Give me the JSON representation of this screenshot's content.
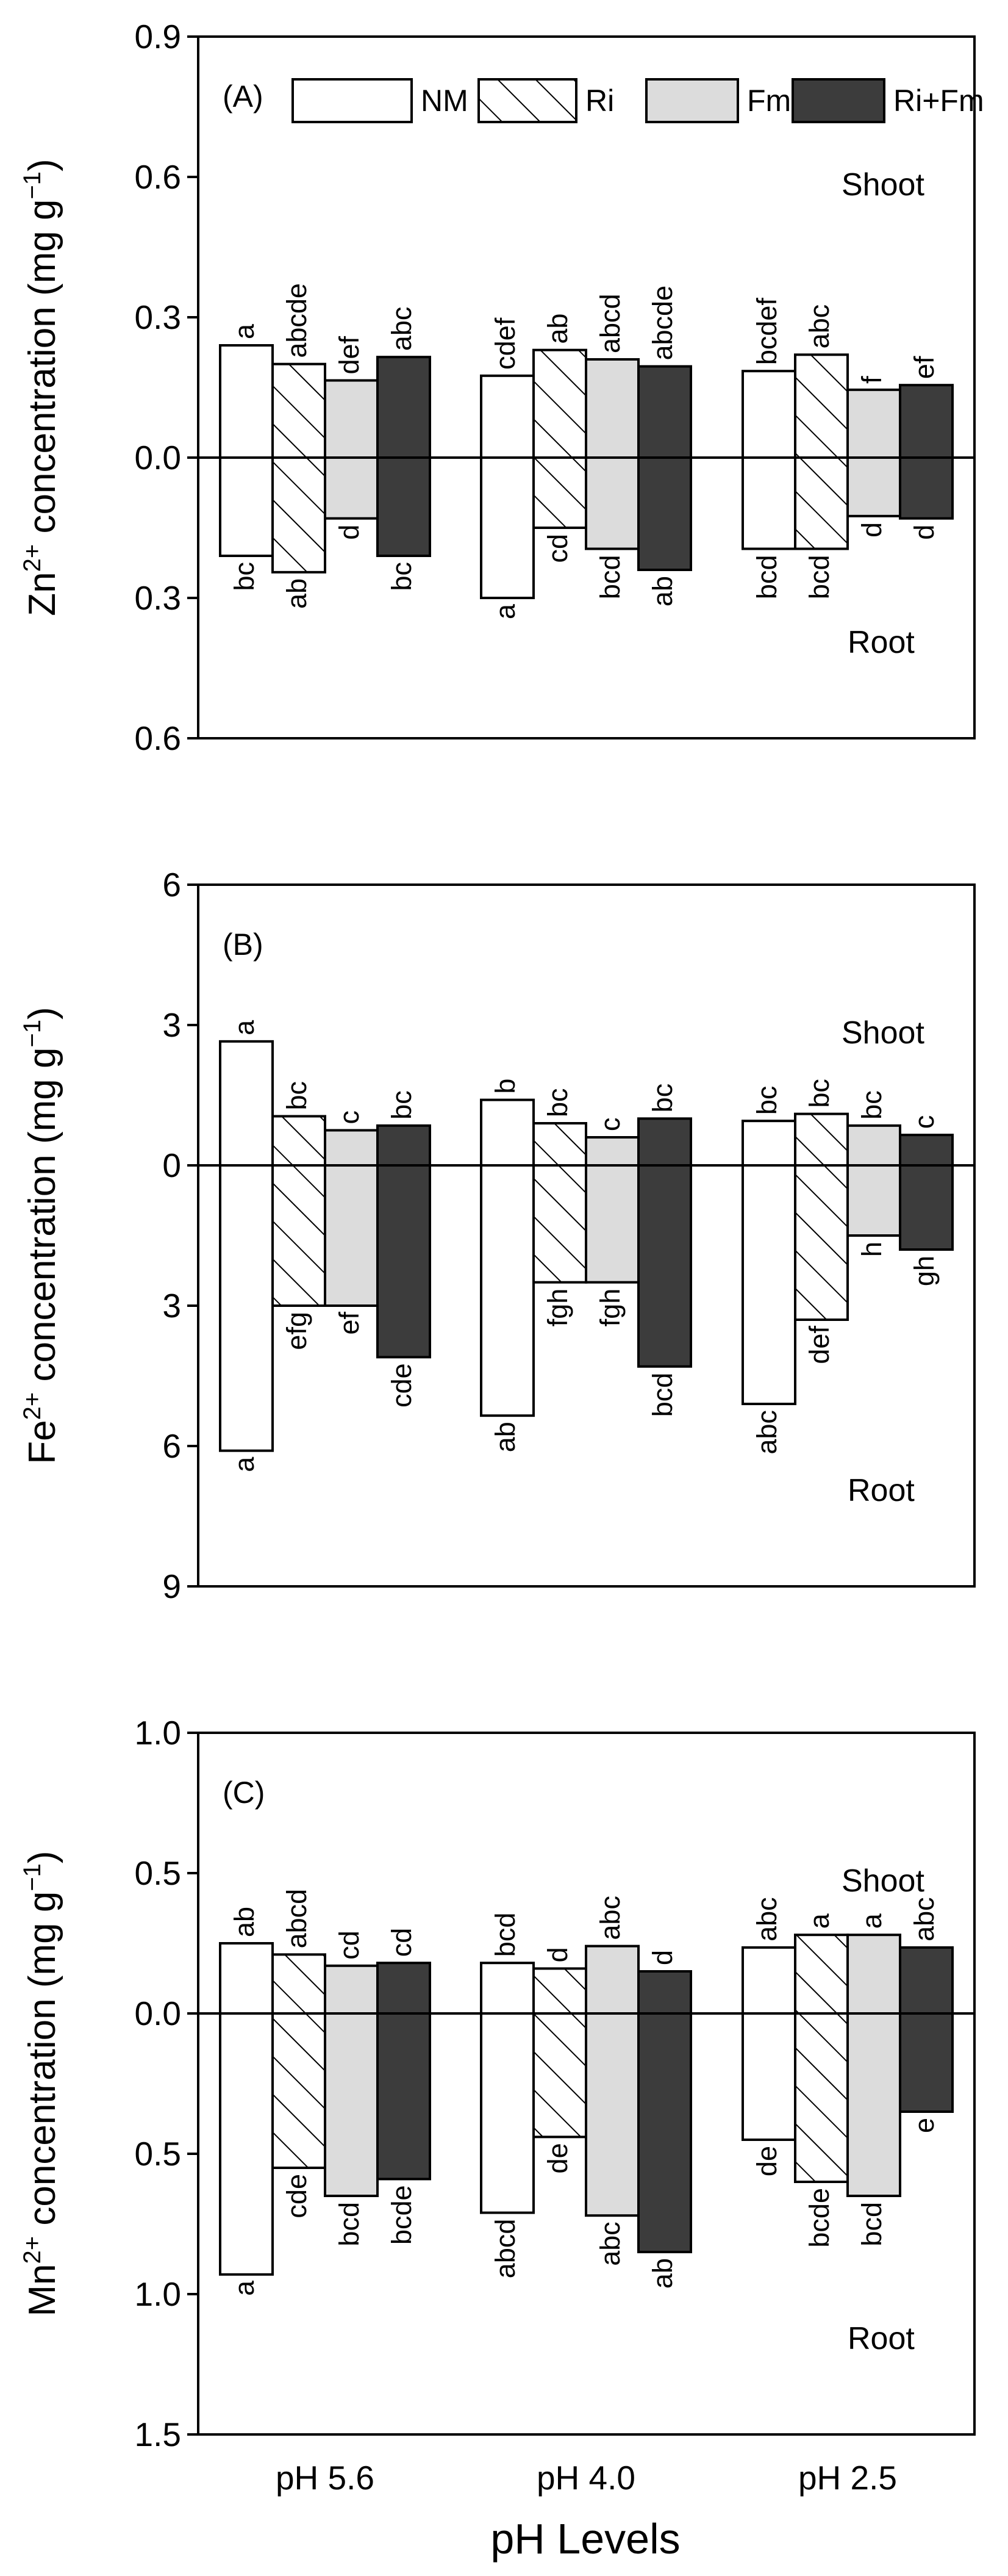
{
  "chart_data": {
    "type": "bar",
    "xlabel": "pH Levels",
    "categories": [
      "pH 5.6",
      "pH 4.0",
      "pH 2.5"
    ],
    "series_names": [
      "NM",
      "Ri",
      "Fm",
      "Ri+Fm"
    ],
    "series_styles": [
      {
        "name": "NM",
        "fill": "#ffffff",
        "hatch": false
      },
      {
        "name": "Ri",
        "fill": "#ffffff",
        "hatch": true
      },
      {
        "name": "Fm",
        "fill": "#dcdcdc",
        "hatch": false
      },
      {
        "name": "Ri+Fm",
        "fill": "#3c3c3c",
        "hatch": false
      }
    ],
    "panels": [
      {
        "id": "A",
        "tag": "(A)",
        "ylabel_main": "Zn",
        "ylabel_sup": "2+",
        "ylabel_rest": " concentration (mg g",
        "ylabel_unit_sup": "−1",
        "ylabel_close": ")",
        "shoot_label": "Shoot",
        "root_label": "Root",
        "ylim_shoot": 0.9,
        "ylim_root": 0.6,
        "ticks": [
          {
            "value": 0.9,
            "label": "0.9"
          },
          {
            "value": 0.6,
            "label": "0.6"
          },
          {
            "value": 0.3,
            "label": "0.3"
          },
          {
            "value": 0.0,
            "label": "0.0"
          },
          {
            "value": -0.3,
            "label": "0.3"
          },
          {
            "value": -0.6,
            "label": "0.6"
          }
        ],
        "shoot": [
          [
            0.24,
            0.2,
            0.165,
            0.215
          ],
          [
            0.175,
            0.23,
            0.21,
            0.195
          ],
          [
            0.185,
            0.22,
            0.145,
            0.155
          ]
        ],
        "root": [
          [
            0.21,
            0.245,
            0.13,
            0.21
          ],
          [
            0.3,
            0.15,
            0.195,
            0.24
          ],
          [
            0.195,
            0.195,
            0.125,
            0.13
          ]
        ],
        "shoot_letters": [
          [
            "a",
            "abcde",
            "def",
            "abc"
          ],
          [
            "cdef",
            "ab",
            "abcd",
            "abcde"
          ],
          [
            "bcdef",
            "abc",
            "f",
            "ef"
          ]
        ],
        "root_letters": [
          [
            "bc",
            "ab",
            "d",
            "bc"
          ],
          [
            "a",
            "cd",
            "bcd",
            "ab"
          ],
          [
            "bcd",
            "bcd",
            "d",
            "d"
          ]
        ],
        "legend": true
      },
      {
        "id": "B",
        "tag": "(B)",
        "ylabel_main": "Fe",
        "ylabel_sup": "2+",
        "ylabel_rest": " concentration (mg g",
        "ylabel_unit_sup": "−1",
        "ylabel_close": ")",
        "shoot_label": "Shoot",
        "root_label": "Root",
        "ylim_shoot": 6,
        "ylim_root": 9,
        "ticks": [
          {
            "value": 6,
            "label": "6"
          },
          {
            "value": 3,
            "label": "3"
          },
          {
            "value": 0,
            "label": "0"
          },
          {
            "value": -3,
            "label": "3"
          },
          {
            "value": -6,
            "label": "6"
          },
          {
            "value": -9,
            "label": "9"
          }
        ],
        "shoot": [
          [
            2.65,
            1.05,
            0.75,
            0.85
          ],
          [
            1.4,
            0.9,
            0.6,
            1.0
          ],
          [
            0.95,
            1.1,
            0.85,
            0.65
          ]
        ],
        "root": [
          [
            6.1,
            3.0,
            3.0,
            4.1
          ],
          [
            5.35,
            2.5,
            2.5,
            4.3
          ],
          [
            5.1,
            3.3,
            1.5,
            1.8
          ]
        ],
        "shoot_letters": [
          [
            "a",
            "bc",
            "c",
            "bc"
          ],
          [
            "b",
            "bc",
            "c",
            "bc"
          ],
          [
            "bc",
            "bc",
            "bc",
            "c"
          ]
        ],
        "root_letters": [
          [
            "a",
            "efg",
            "ef",
            "cde"
          ],
          [
            "ab",
            "fgh",
            "fgh",
            "bcd"
          ],
          [
            "abc",
            "def",
            "h",
            "gh"
          ]
        ],
        "legend": false
      },
      {
        "id": "C",
        "tag": "(C)",
        "ylabel_main": "Mn",
        "ylabel_sup": "2+",
        "ylabel_rest": " concentration (mg g",
        "ylabel_unit_sup": "−1",
        "ylabel_close": ")",
        "shoot_label": "Shoot",
        "root_label": "Root",
        "ylim_shoot": 1.0,
        "ylim_root": 1.5,
        "ticks": [
          {
            "value": 1.0,
            "label": "1.0"
          },
          {
            "value": 0.5,
            "label": "0.5"
          },
          {
            "value": 0.0,
            "label": "0.0"
          },
          {
            "value": -0.5,
            "label": "0.5"
          },
          {
            "value": -1.0,
            "label": "1.0"
          },
          {
            "value": -1.5,
            "label": "1.5"
          }
        ],
        "shoot": [
          [
            0.25,
            0.21,
            0.17,
            0.18
          ],
          [
            0.18,
            0.16,
            0.24,
            0.15
          ],
          [
            0.235,
            0.28,
            0.28,
            0.235
          ]
        ],
        "root": [
          [
            0.93,
            0.55,
            0.65,
            0.59
          ],
          [
            0.71,
            0.44,
            0.72,
            0.85
          ],
          [
            0.45,
            0.6,
            0.65,
            0.35
          ]
        ],
        "shoot_letters": [
          [
            "ab",
            "abcd",
            "cd",
            "cd"
          ],
          [
            "bcd",
            "d",
            "abc",
            "d"
          ],
          [
            "abc",
            "a",
            "a",
            "abc"
          ]
        ],
        "root_letters": [
          [
            "a",
            "cde",
            "bcd",
            "bcde"
          ],
          [
            "abcd",
            "de",
            "abc",
            "ab"
          ],
          [
            "de",
            "bcde",
            "bcd",
            "e"
          ]
        ],
        "legend": false
      }
    ]
  }
}
